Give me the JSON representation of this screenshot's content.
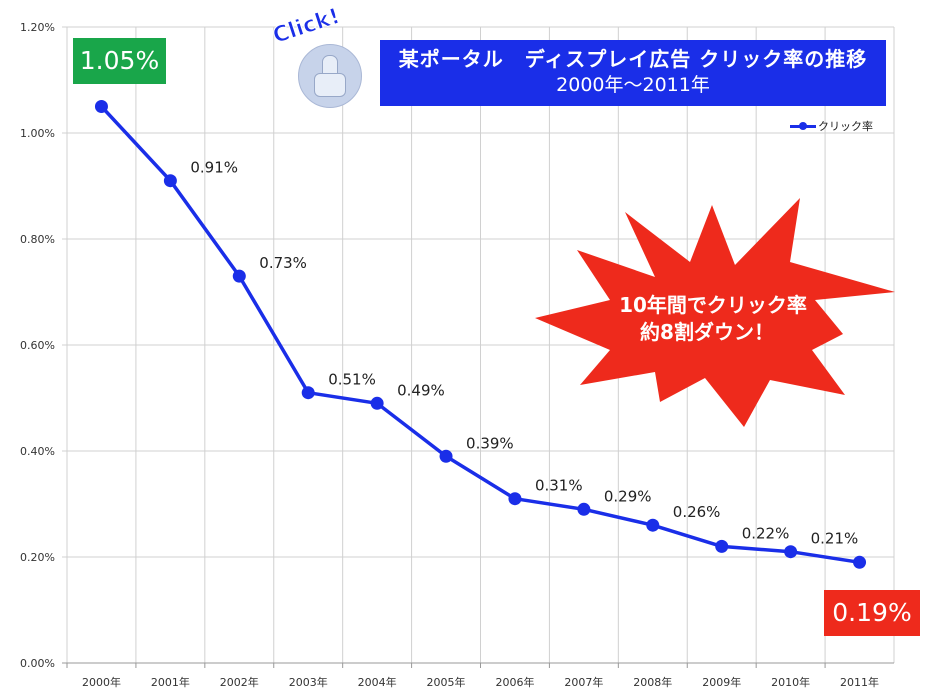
{
  "title": {
    "line1": "某ポータル　ディスプレイ広告 クリック率の推移",
    "line2": "2000年～2011年"
  },
  "click_badge": {
    "text": "Click!",
    "icon": "pointing-hand-icon"
  },
  "callouts": {
    "start": "1.05%",
    "end": "0.19%",
    "burst_line1": "10年間でクリック率",
    "burst_line2": "約8割ダウン！"
  },
  "legend": {
    "label": "クリック率"
  },
  "colors": {
    "series": "#1a2ee8",
    "title_bg": "#1a2ee8",
    "start_callout": "#19a64a",
    "end_callout": "#ee2a1c",
    "burst": "#ee2a1c",
    "grid": "#d0d0d0"
  },
  "chart_data": {
    "type": "line",
    "title": "某ポータル　ディスプレイ広告 クリック率の推移 2000年～2011年",
    "categories": [
      "2000年",
      "2001年",
      "2002年",
      "2003年",
      "2004年",
      "2005年",
      "2006年",
      "2007年",
      "2008年",
      "2009年",
      "2010年",
      "2011年"
    ],
    "series": [
      {
        "name": "クリック率",
        "values": [
          1.05,
          0.91,
          0.73,
          0.51,
          0.49,
          0.39,
          0.31,
          0.29,
          0.26,
          0.22,
          0.21,
          0.19
        ]
      }
    ],
    "data_labels": [
      "0.91%",
      "0.73%",
      "0.51%",
      "0.49%",
      "0.39%",
      "0.31%",
      "0.29%",
      "0.26%",
      "0.22%",
      "0.21%"
    ],
    "y_ticks": [
      "0.00%",
      "0.20%",
      "0.40%",
      "0.60%",
      "0.80%",
      "1.00%",
      "1.20%"
    ],
    "ylim": [
      0,
      1.2
    ],
    "grid": true,
    "legend_position": "top-right"
  }
}
